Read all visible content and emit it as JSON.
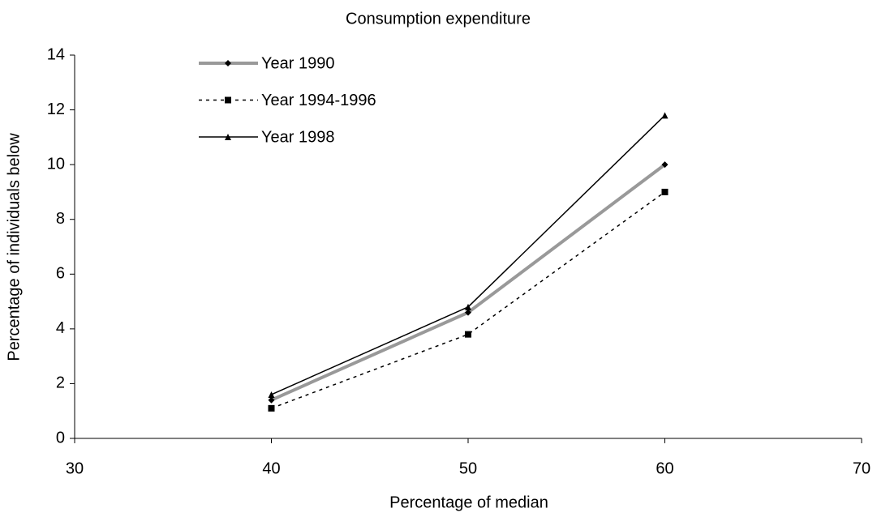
{
  "chart_data": {
    "type": "line",
    "title": "Consumption expenditure",
    "x_label": "Percentage of median",
    "y_label": "Percentage of individuals below",
    "x": [
      40,
      50,
      60
    ],
    "series": [
      {
        "name": "Year 1990",
        "color": "#999999",
        "width": 4,
        "dash": "solid",
        "marker": "diamond",
        "values": [
          1.4,
          4.6,
          10.0
        ]
      },
      {
        "name": "Year 1994-1996",
        "color": "#000000",
        "width": 1.5,
        "dash": "dotted",
        "marker": "square",
        "values": [
          1.1,
          3.8,
          9.0
        ]
      },
      {
        "name": "Year 1998",
        "color": "#000000",
        "width": 1.5,
        "dash": "solid",
        "marker": "triangle",
        "values": [
          1.6,
          4.8,
          11.8
        ]
      }
    ],
    "xlim": [
      30,
      70
    ],
    "xticks": [
      30,
      40,
      50,
      60,
      70
    ],
    "ylim": [
      0,
      14
    ],
    "yticks": [
      0,
      2,
      4,
      6,
      8,
      10,
      12,
      14
    ],
    "grid": false,
    "legend": "top-left"
  }
}
